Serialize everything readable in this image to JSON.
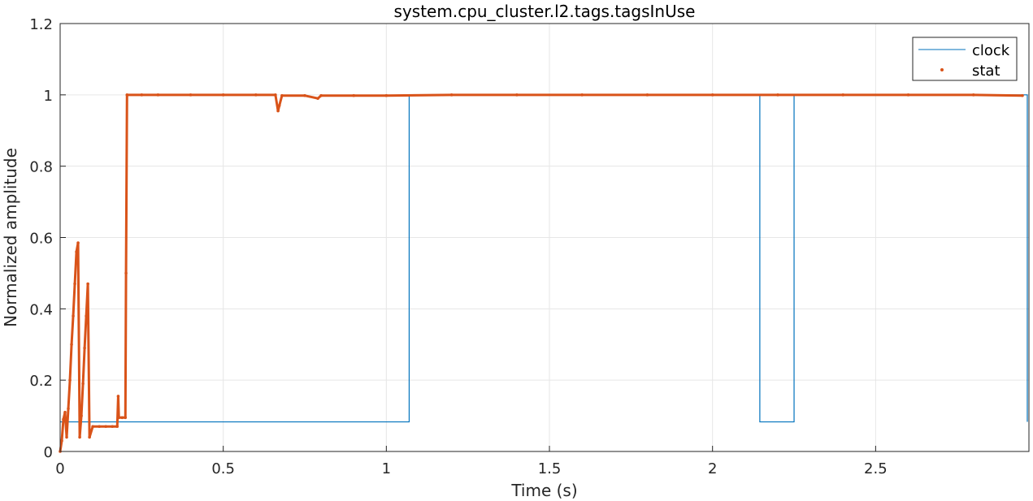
{
  "chart_data": {
    "type": "line",
    "title": "system.cpu_cluster.l2.tags.tagsInUse",
    "xlabel": "Time (s)",
    "ylabel": "Normalized amplitude",
    "xlim": [
      0,
      2.97
    ],
    "ylim": [
      0,
      1.2
    ],
    "xticks": [
      0,
      0.5,
      1,
      1.5,
      2,
      2.5
    ],
    "xtick_labels": [
      "0",
      "0.5",
      "1",
      "1.5",
      "2",
      "2.5"
    ],
    "yticks": [
      0,
      0.2,
      0.4,
      0.6,
      0.8,
      1,
      1.2
    ],
    "ytick_labels": [
      "0",
      "0.2",
      "0.4",
      "0.6",
      "0.8",
      "1",
      "1.2"
    ],
    "grid": true,
    "legend_position": "top-right",
    "series": [
      {
        "name": "clock",
        "style": "line",
        "color": "#0072BD",
        "x": [
          0,
          1.07,
          1.07,
          2.145,
          2.145,
          2.25,
          2.25,
          2.965,
          2.965
        ],
        "y": [
          0.083,
          0.083,
          1.0,
          1.0,
          0.083,
          0.083,
          1.0,
          1.0,
          0.083
        ]
      },
      {
        "name": "stat",
        "style": "markers",
        "color": "#D95319",
        "x": [
          0.0,
          0.005,
          0.01,
          0.015,
          0.02,
          0.025,
          0.03,
          0.035,
          0.04,
          0.045,
          0.05,
          0.055,
          0.06,
          0.065,
          0.07,
          0.075,
          0.08,
          0.085,
          0.09,
          0.1,
          0.12,
          0.14,
          0.16,
          0.175,
          0.178,
          0.18,
          0.19,
          0.2,
          0.202,
          0.205,
          0.25,
          0.3,
          0.4,
          0.5,
          0.6,
          0.66,
          0.668,
          0.672,
          0.68,
          0.75,
          0.79,
          0.8,
          0.9,
          1.0,
          1.2,
          1.4,
          1.6,
          1.8,
          2.0,
          2.2,
          2.4,
          2.6,
          2.8,
          2.95
        ],
        "y": [
          0.0,
          0.03,
          0.09,
          0.11,
          0.04,
          0.12,
          0.2,
          0.3,
          0.38,
          0.47,
          0.56,
          0.585,
          0.04,
          0.1,
          0.19,
          0.29,
          0.38,
          0.47,
          0.04,
          0.07,
          0.07,
          0.07,
          0.07,
          0.07,
          0.155,
          0.095,
          0.095,
          0.095,
          0.5,
          1.0,
          1.0,
          1.0,
          1.0,
          1.0,
          1.0,
          1.0,
          0.955,
          0.97,
          0.998,
          0.998,
          0.99,
          0.998,
          0.998,
          0.998,
          1.0,
          1.0,
          1.0,
          1.0,
          1.0,
          1.0,
          1.0,
          1.0,
          1.0,
          0.998
        ]
      }
    ]
  }
}
